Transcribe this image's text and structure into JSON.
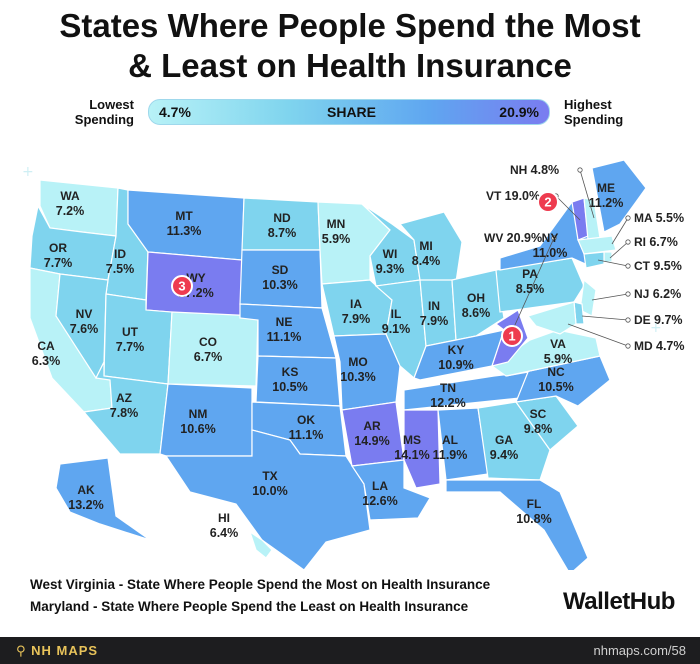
{
  "title_line1": "States Where People Spend the Most",
  "title_line2": "& Least on Health Insurance",
  "legend": {
    "low_label_1": "Lowest",
    "low_label_2": "Spending",
    "high_label_1": "Highest",
    "high_label_2": "Spending",
    "min": "4.7%",
    "mid": "SHARE",
    "max": "20.9%"
  },
  "colors": {
    "lowest": "#b8f2f7",
    "low": "#7fd4ee",
    "mid": "#5fa6f0",
    "high": "#7a7cf0",
    "highlight_marker": "#ee3b4f"
  },
  "states": [
    {
      "abbr": "WA",
      "value": "7.2%"
    },
    {
      "abbr": "OR",
      "value": "7.7%"
    },
    {
      "abbr": "CA",
      "value": "6.3%"
    },
    {
      "abbr": "ID",
      "value": "7.5%"
    },
    {
      "abbr": "NV",
      "value": "7.6%"
    },
    {
      "abbr": "MT",
      "value": "11.3%"
    },
    {
      "abbr": "WY",
      "value": "17.2%"
    },
    {
      "abbr": "UT",
      "value": "7.7%"
    },
    {
      "abbr": "AZ",
      "value": "7.8%"
    },
    {
      "abbr": "CO",
      "value": "6.7%"
    },
    {
      "abbr": "NM",
      "value": "10.6%"
    },
    {
      "abbr": "ND",
      "value": "8.7%"
    },
    {
      "abbr": "SD",
      "value": "10.3%"
    },
    {
      "abbr": "NE",
      "value": "11.1%"
    },
    {
      "abbr": "KS",
      "value": "10.5%"
    },
    {
      "abbr": "OK",
      "value": "11.1%"
    },
    {
      "abbr": "TX",
      "value": "10.0%"
    },
    {
      "abbr": "MN",
      "value": "5.9%"
    },
    {
      "abbr": "IA",
      "value": "7.9%"
    },
    {
      "abbr": "MO",
      "value": "10.3%"
    },
    {
      "abbr": "AR",
      "value": "14.9%"
    },
    {
      "abbr": "LA",
      "value": "12.6%"
    },
    {
      "abbr": "WI",
      "value": "9.3%"
    },
    {
      "abbr": "IL",
      "value": "9.1%"
    },
    {
      "abbr": "MI",
      "value": "8.4%"
    },
    {
      "abbr": "IN",
      "value": "7.9%"
    },
    {
      "abbr": "OH",
      "value": "8.6%"
    },
    {
      "abbr": "KY",
      "value": "10.9%"
    },
    {
      "abbr": "TN",
      "value": "12.2%"
    },
    {
      "abbr": "MS",
      "value": "14.1%"
    },
    {
      "abbr": "AL",
      "value": "11.9%"
    },
    {
      "abbr": "GA",
      "value": "9.4%"
    },
    {
      "abbr": "FL",
      "value": "10.8%"
    },
    {
      "abbr": "SC",
      "value": "9.8%"
    },
    {
      "abbr": "NC",
      "value": "10.5%"
    },
    {
      "abbr": "VA",
      "value": "5.9%"
    },
    {
      "abbr": "WV",
      "value": "20.9%"
    },
    {
      "abbr": "PA",
      "value": "8.5%"
    },
    {
      "abbr": "NY",
      "value": "11.0%"
    },
    {
      "abbr": "ME",
      "value": "11.2%"
    },
    {
      "abbr": "VT",
      "value": "19.0%"
    },
    {
      "abbr": "NH",
      "value": "4.8%"
    },
    {
      "abbr": "MA",
      "value": "5.5%"
    },
    {
      "abbr": "RI",
      "value": "6.7%"
    },
    {
      "abbr": "CT",
      "value": "9.5%"
    },
    {
      "abbr": "NJ",
      "value": "6.2%"
    },
    {
      "abbr": "DE",
      "value": "9.7%"
    },
    {
      "abbr": "MD",
      "value": "4.7%"
    },
    {
      "abbr": "AK",
      "value": "13.2%"
    },
    {
      "abbr": "HI",
      "value": "6.4%"
    }
  ],
  "rank_markers": [
    {
      "rank": "1",
      "state": "WV"
    },
    {
      "rank": "2",
      "state": "VT"
    },
    {
      "rank": "3",
      "state": "WY"
    }
  ],
  "footer": {
    "most_state": "West Virginia",
    "most_text": " - State Where People Spend the Most on Health Insurance",
    "least_state": "Maryland",
    "least_text": " - State Where People Spend the Least on Health Insurance",
    "brand": "WalletHub",
    "source_logo": "NH MAPS",
    "url": "nhmaps.com/58"
  }
}
